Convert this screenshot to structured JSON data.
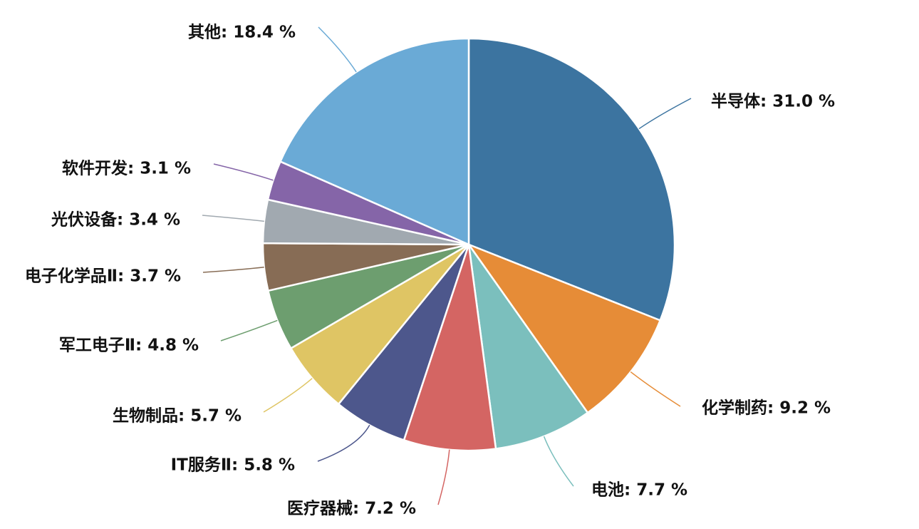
{
  "chart_data": {
    "type": "pie",
    "start_angle_deg": 0,
    "direction": "clockwise",
    "slices": [
      {
        "label": "半导体: 31.0 %",
        "name": "半导体",
        "value": 31.0,
        "color": "#3C74A0"
      },
      {
        "label": "化学制药: 9.2 %",
        "name": "化学制药",
        "value": 9.2,
        "color": "#E68C37"
      },
      {
        "label": "电池: 7.7 %",
        "name": "电池",
        "value": 7.7,
        "color": "#7BBFBD"
      },
      {
        "label": "医疗器械: 7.2 %",
        "name": "医疗器械",
        "value": 7.2,
        "color": "#D46563"
      },
      {
        "label": "IT服务Ⅱ: 5.8 %",
        "name": "IT服务Ⅱ",
        "value": 5.8,
        "color": "#4D578C"
      },
      {
        "label": "生物制品: 5.7 %",
        "name": "生物制品",
        "value": 5.7,
        "color": "#DFC564"
      },
      {
        "label": "军工电子Ⅱ: 4.8 %",
        "name": "军工电子Ⅱ",
        "value": 4.8,
        "color": "#6D9E6F"
      },
      {
        "label": "电子化学品Ⅱ: 3.7 %",
        "name": "电子化学品Ⅱ",
        "value": 3.7,
        "color": "#876C55"
      },
      {
        "label": "光伏设备: 3.4 %",
        "name": "光伏设备",
        "value": 3.4,
        "color": "#A1A9B0"
      },
      {
        "label": "软件开发: 3.1 %",
        "name": "软件开发",
        "value": 3.1,
        "color": "#8565A8"
      },
      {
        "label": "其他: 18.4 %",
        "name": "其他",
        "value": 18.4,
        "color": "#6AAAD6"
      }
    ]
  }
}
